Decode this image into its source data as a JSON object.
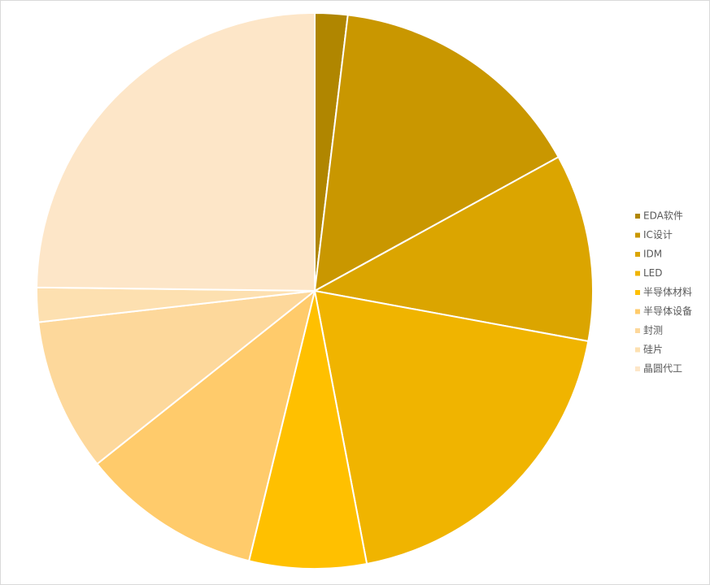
{
  "chart_data": {
    "type": "pie",
    "categories": [
      "EDA软件",
      "IC设计",
      "IDM",
      "LED",
      "半导体材料",
      "半导体设备",
      "封测",
      "硅片",
      "晶圆代工"
    ],
    "values": [
      1.9,
      15.1,
      10.9,
      19.1,
      6.8,
      10.5,
      8.9,
      2.0,
      24.8
    ],
    "colors": [
      "#b08600",
      "#c99700",
      "#dba500",
      "#f0b400",
      "#ffc000",
      "#ffcb6b",
      "#fdd89b",
      "#fde0b0",
      "#fde6c8"
    ],
    "legend": "right"
  }
}
